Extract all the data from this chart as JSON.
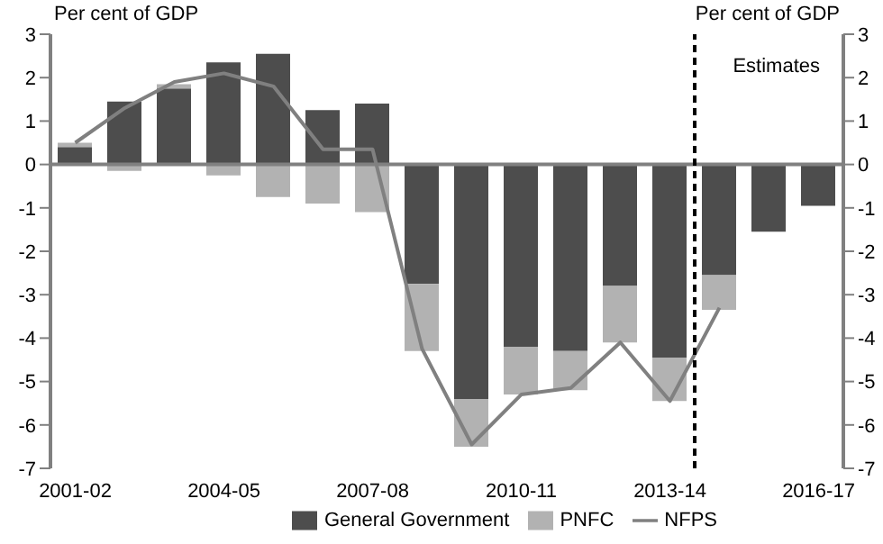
{
  "chart_data": {
    "type": "bar",
    "stacked": true,
    "ylabel": "Per cent of GDP",
    "y2label": "Per cent of GDP",
    "categories": [
      "2001-02",
      null,
      null,
      "2004-05",
      null,
      null,
      "2007-08",
      null,
      null,
      "2010-11",
      null,
      null,
      "2013-14",
      null,
      null,
      "2016-17"
    ],
    "series": [
      {
        "name": "General Government",
        "color": "#4d4d4d",
        "values": [
          0.4,
          1.45,
          1.75,
          2.35,
          2.55,
          1.25,
          1.4,
          -2.75,
          -5.4,
          -4.2,
          -4.3,
          -2.8,
          -4.45,
          -2.55,
          -1.55,
          -0.95
        ]
      },
      {
        "name": "PNFC",
        "color": "#b2b2b2",
        "values": [
          0.1,
          -0.15,
          0.1,
          -0.25,
          -0.75,
          -0.9,
          -1.1,
          -1.55,
          -1.1,
          -1.1,
          -0.9,
          -1.3,
          -1.0,
          -0.8,
          null,
          null
        ]
      },
      {
        "name": "NFPS",
        "type": "line",
        "color": "#808080",
        "values": [
          0.5,
          1.3,
          1.9,
          2.1,
          1.8,
          0.35,
          0.35,
          -4.25,
          -6.45,
          -5.3,
          -5.15,
          -4.1,
          -5.45,
          -3.3,
          null,
          null
        ]
      }
    ],
    "ylim": [
      -7,
      3
    ],
    "yticks": [
      -7,
      -6,
      -5,
      -4,
      -3,
      -2,
      -1,
      0,
      1,
      2,
      3
    ],
    "y2lim": [
      -7,
      3
    ],
    "y2ticks": [
      -7,
      -6,
      -5,
      -4,
      -3,
      -2,
      -1,
      0,
      1,
      2,
      3
    ],
    "ref_lines": [
      {
        "axis": "x",
        "value": "2013-14",
        "color": "#000000",
        "line_style": "dashed",
        "label": null
      }
    ],
    "annotations": [
      "Estimates"
    ],
    "legend": "bottom",
    "grid": false,
    "marker": "none"
  }
}
